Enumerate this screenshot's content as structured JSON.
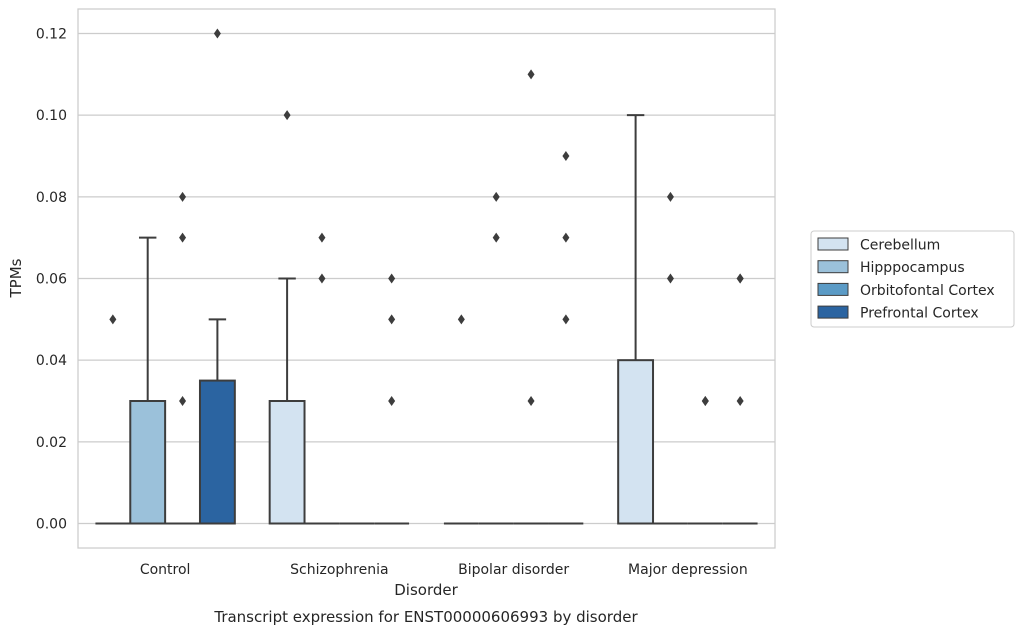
{
  "chart_data": {
    "type": "box",
    "title": "",
    "caption": "Transcript expression for ENST00000606993 by disorder",
    "xlabel": "Disorder",
    "ylabel": "TPMs",
    "ylim": [
      -0.006,
      0.126
    ],
    "yticks": [
      0.0,
      0.02,
      0.04,
      0.06,
      0.08,
      0.1,
      0.12
    ],
    "ytick_labels": [
      "0.00",
      "0.02",
      "0.04",
      "0.06",
      "0.08",
      "0.10",
      "0.12"
    ],
    "grid": true,
    "legend_position": "right",
    "categories": [
      "Control",
      "Schizophrenia",
      "Bipolar disorder",
      "Major depression"
    ],
    "series": [
      {
        "name": "Cerebellum",
        "color": "#d3e3f1",
        "boxes": [
          {
            "q1": 0,
            "median": 0,
            "q3": 0,
            "whisker_low": 0,
            "whisker_high": 0,
            "outliers": [
              0.05
            ]
          },
          {
            "q1": 0,
            "median": 0,
            "q3": 0.03,
            "whisker_low": 0,
            "whisker_high": 0.06,
            "outliers": [
              0.1
            ]
          },
          {
            "q1": 0,
            "median": 0,
            "q3": 0,
            "whisker_low": 0,
            "whisker_high": 0,
            "outliers": [
              0.05
            ]
          },
          {
            "q1": 0,
            "median": 0,
            "q3": 0.04,
            "whisker_low": 0,
            "whisker_high": 0.1,
            "outliers": []
          }
        ]
      },
      {
        "name": "Hipppocampus",
        "color": "#9bc1da",
        "boxes": [
          {
            "q1": 0,
            "median": 0,
            "q3": 0.03,
            "whisker_low": 0,
            "whisker_high": 0.07,
            "outliers": []
          },
          {
            "q1": 0,
            "median": 0,
            "q3": 0,
            "whisker_low": 0,
            "whisker_high": 0,
            "outliers": [
              0.06,
              0.07
            ]
          },
          {
            "q1": 0,
            "median": 0,
            "q3": 0,
            "whisker_low": 0,
            "whisker_high": 0,
            "outliers": [
              0.07,
              0.08
            ]
          },
          {
            "q1": 0,
            "median": 0,
            "q3": 0,
            "whisker_low": 0,
            "whisker_high": 0,
            "outliers": [
              0.06,
              0.08
            ]
          }
        ]
      },
      {
        "name": "Orbitofontal Cortex",
        "color": "#5b9bc6",
        "boxes": [
          {
            "q1": 0,
            "median": 0,
            "q3": 0,
            "whisker_low": 0,
            "whisker_high": 0,
            "outliers": [
              0.03,
              0.07,
              0.08
            ]
          },
          {
            "q1": 0,
            "median": 0,
            "q3": 0,
            "whisker_low": 0,
            "whisker_high": 0,
            "outliers": []
          },
          {
            "q1": 0,
            "median": 0,
            "q3": 0,
            "whisker_low": 0,
            "whisker_high": 0,
            "outliers": [
              0.03,
              0.11
            ]
          },
          {
            "q1": 0,
            "median": 0,
            "q3": 0,
            "whisker_low": 0,
            "whisker_high": 0,
            "outliers": [
              0.03,
              0.03
            ]
          }
        ]
      },
      {
        "name": "Prefrontal Cortex",
        "color": "#2b64a1",
        "boxes": [
          {
            "q1": 0,
            "median": 0,
            "q3": 0.035,
            "whisker_low": 0,
            "whisker_high": 0.05,
            "outliers": [
              0.12
            ]
          },
          {
            "q1": 0,
            "median": 0,
            "q3": 0,
            "whisker_low": 0,
            "whisker_high": 0,
            "outliers": [
              0.03,
              0.05,
              0.06
            ]
          },
          {
            "q1": 0,
            "median": 0,
            "q3": 0,
            "whisker_low": 0,
            "whisker_high": 0,
            "outliers": [
              0.05,
              0.07,
              0.09
            ]
          },
          {
            "q1": 0,
            "median": 0,
            "q3": 0,
            "whisker_low": 0,
            "whisker_high": 0,
            "outliers": [
              0.03,
              0.06,
              0.06
            ]
          }
        ]
      }
    ]
  }
}
